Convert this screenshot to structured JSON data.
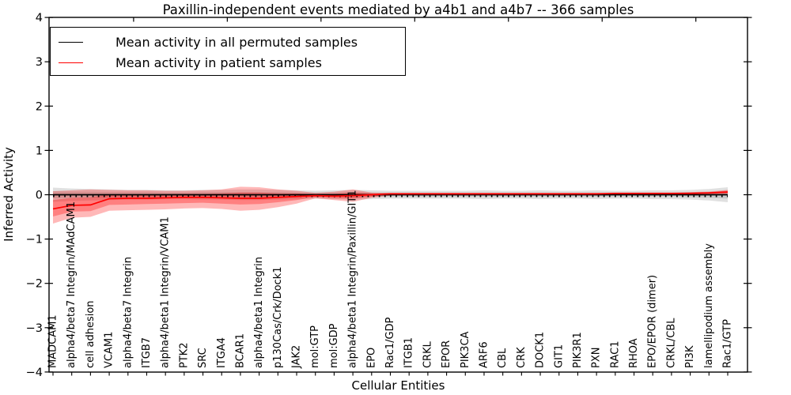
{
  "title": "Paxillin-independent events mediated by a4b1 and a4b7 -- 366 samples",
  "legend": {
    "items": [
      {
        "label": "Mean activity in all permuted samples",
        "color": "#000000"
      },
      {
        "label": "Mean activity in patient samples",
        "color": "#ff0000"
      }
    ]
  },
  "axes": {
    "ylabel": "Inferred Activity",
    "xlabel": "Cellular Entities",
    "ytick_labels": [
      "4",
      "3",
      "2",
      "1",
      "0",
      "−1",
      "−2",
      "−3",
      "−4"
    ]
  },
  "chart_data": {
    "type": "line",
    "title": "Paxillin-independent events mediated by a4b1 and a4b7 -- 366 samples",
    "xlabel": "Cellular Entities",
    "ylabel": "Inferred Activity",
    "ylim": [
      -4,
      4
    ],
    "yticks": [
      4,
      3,
      2,
      1,
      0,
      -1,
      -2,
      -3,
      -4
    ],
    "grid": false,
    "legend_position": "upper left",
    "categories": [
      "MADCAM1",
      "alpha4/beta7 Integrin/MAdCAM1",
      "cell adhesion",
      "VCAM1",
      "alpha4/beta7 Integrin",
      "ITGB7",
      "alpha4/beta1 Integrin/VCAM1",
      "PTK2",
      "SRC",
      "ITGA4",
      "BCAR1",
      "alpha4/beta1 Integrin",
      "p130Cas/Crk/Dock1",
      "JAK2",
      "mol:GTP",
      "mol:GDP",
      "alpha4/beta1 Integrin/Paxillin/GIT1",
      "EPO",
      "Rac1/GDP",
      "ITGB1",
      "CRKL",
      "EPOR",
      "PIK3CA",
      "ARF6",
      "CBL",
      "CRK",
      "DOCK1",
      "GIT1",
      "PIK3R1",
      "PXN",
      "RAC1",
      "RHOA",
      "EPO/EPOR (dimer)",
      "CRKL/CBL",
      "PI3K",
      "lamellipodium assembly",
      "Rac1/GTP"
    ],
    "series": [
      {
        "name": "Mean activity in all permuted samples",
        "color": "#000000",
        "values": [
          0,
          0,
          0,
          0,
          0,
          0,
          0,
          0,
          0,
          0,
          0,
          0,
          0,
          0,
          0,
          0,
          0,
          0,
          0,
          0,
          0,
          0,
          0,
          0,
          0,
          0,
          0,
          0,
          0,
          0,
          0,
          0,
          0,
          0,
          0,
          0,
          0
        ]
      },
      {
        "name": "Mean activity in patient samples",
        "color": "#ff0000",
        "values": [
          -0.32,
          -0.24,
          -0.23,
          -0.09,
          -0.08,
          -0.08,
          -0.07,
          -0.06,
          -0.06,
          -0.07,
          -0.08,
          -0.08,
          -0.06,
          -0.04,
          -0.02,
          -0.03,
          -0.02,
          0.0,
          0.02,
          0.02,
          0.02,
          0.02,
          0.02,
          0.02,
          0.02,
          0.02,
          0.02,
          0.02,
          0.02,
          0.02,
          0.03,
          0.03,
          0.03,
          0.03,
          0.03,
          0.04,
          0.06
        ]
      }
    ],
    "bands": [
      {
        "name": "permuted-band-outer",
        "color": "#000000",
        "opacity": 0.12,
        "upper": [
          0.16,
          0.14,
          0.13,
          0.12,
          0.11,
          0.11,
          0.1,
          0.1,
          0.11,
          0.11,
          0.12,
          0.12,
          0.11,
          0.1,
          0.09,
          0.1,
          0.11,
          0.1,
          0.09,
          0.09,
          0.09,
          0.09,
          0.09,
          0.1,
          0.09,
          0.09,
          0.1,
          0.09,
          0.09,
          0.1,
          0.09,
          0.09,
          0.1,
          0.1,
          0.11,
          0.13,
          0.17
        ],
        "lower": [
          -0.16,
          -0.14,
          -0.13,
          -0.12,
          -0.11,
          -0.11,
          -0.1,
          -0.1,
          -0.11,
          -0.11,
          -0.12,
          -0.12,
          -0.11,
          -0.1,
          -0.09,
          -0.1,
          -0.11,
          -0.1,
          -0.09,
          -0.09,
          -0.09,
          -0.09,
          -0.09,
          -0.1,
          -0.09,
          -0.09,
          -0.1,
          -0.09,
          -0.09,
          -0.1,
          -0.09,
          -0.09,
          -0.1,
          -0.1,
          -0.11,
          -0.13,
          -0.17
        ]
      },
      {
        "name": "permuted-band-inner",
        "color": "#000000",
        "opacity": 0.1,
        "upper": [
          0.08,
          0.07,
          0.07,
          0.06,
          0.06,
          0.06,
          0.05,
          0.05,
          0.06,
          0.06,
          0.06,
          0.06,
          0.06,
          0.05,
          0.05,
          0.05,
          0.06,
          0.05,
          0.05,
          0.05,
          0.05,
          0.05,
          0.05,
          0.05,
          0.05,
          0.05,
          0.05,
          0.05,
          0.05,
          0.05,
          0.05,
          0.05,
          0.05,
          0.05,
          0.06,
          0.07,
          0.09
        ],
        "lower": [
          -0.08,
          -0.07,
          -0.07,
          -0.06,
          -0.06,
          -0.06,
          -0.05,
          -0.05,
          -0.06,
          -0.06,
          -0.06,
          -0.06,
          -0.06,
          -0.05,
          -0.05,
          -0.05,
          -0.06,
          -0.05,
          -0.05,
          -0.05,
          -0.05,
          -0.05,
          -0.05,
          -0.05,
          -0.05,
          -0.05,
          -0.05,
          -0.05,
          -0.05,
          -0.05,
          -0.05,
          -0.05,
          -0.05,
          -0.05,
          -0.06,
          -0.07,
          -0.09
        ]
      },
      {
        "name": "patient-band-outer",
        "color": "#ff0000",
        "opacity": 0.28,
        "upper": [
          0.08,
          0.1,
          0.12,
          0.11,
          0.1,
          0.1,
          0.09,
          0.09,
          0.1,
          0.12,
          0.18,
          0.17,
          0.12,
          0.09,
          0.04,
          0.07,
          0.12,
          0.05,
          0.04,
          0.04,
          0.04,
          0.04,
          0.04,
          0.04,
          0.04,
          0.04,
          0.04,
          0.04,
          0.04,
          0.04,
          0.05,
          0.05,
          0.05,
          0.05,
          0.06,
          0.07,
          0.11
        ],
        "lower": [
          -0.65,
          -0.52,
          -0.5,
          -0.36,
          -0.35,
          -0.34,
          -0.33,
          -0.31,
          -0.3,
          -0.32,
          -0.36,
          -0.34,
          -0.28,
          -0.2,
          -0.08,
          -0.12,
          -0.16,
          -0.07,
          -0.02,
          -0.01,
          -0.01,
          -0.01,
          -0.01,
          -0.01,
          -0.01,
          -0.01,
          -0.01,
          -0.01,
          -0.01,
          -0.01,
          0.0,
          0.0,
          0.0,
          0.0,
          0.01,
          0.01,
          0.02
        ]
      },
      {
        "name": "patient-band-inner",
        "color": "#ff0000",
        "opacity": 0.3,
        "upper": [
          -0.12,
          -0.07,
          -0.06,
          0.01,
          0.01,
          0.01,
          0.01,
          0.02,
          0.02,
          0.03,
          0.05,
          0.05,
          0.03,
          0.03,
          0.01,
          0.02,
          0.05,
          0.03,
          0.03,
          0.03,
          0.03,
          0.03,
          0.03,
          0.03,
          0.03,
          0.03,
          0.03,
          0.03,
          0.03,
          0.03,
          0.04,
          0.04,
          0.04,
          0.04,
          0.05,
          0.06,
          0.09
        ],
        "lower": [
          -0.49,
          -0.38,
          -0.37,
          -0.23,
          -0.22,
          -0.21,
          -0.2,
          -0.19,
          -0.18,
          -0.2,
          -0.22,
          -0.21,
          -0.17,
          -0.12,
          -0.05,
          -0.08,
          -0.09,
          -0.04,
          0.0,
          0.0,
          0.0,
          0.0,
          0.0,
          0.0,
          0.0,
          0.0,
          0.0,
          0.0,
          0.0,
          0.0,
          0.02,
          0.02,
          0.02,
          0.02,
          0.02,
          0.03,
          0.04
        ]
      }
    ]
  }
}
